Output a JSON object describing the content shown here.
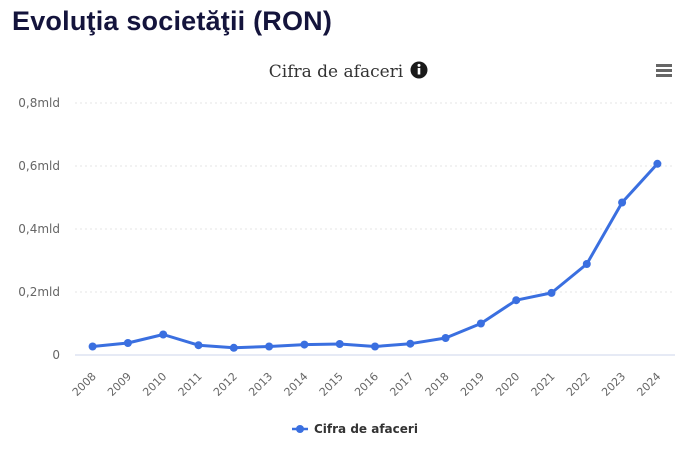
{
  "page": {
    "title": "Evoluţia societăţii (RON)"
  },
  "chart_data": {
    "type": "line",
    "title": "Cifra de afaceri",
    "title_icon": "info-icon",
    "menu_icon": "hamburger-menu-icon",
    "x": [
      "2008",
      "2009",
      "2010",
      "2011",
      "2012",
      "2013",
      "2014",
      "2015",
      "2016",
      "2017",
      "2018",
      "2019",
      "2020",
      "2021",
      "2022",
      "2023",
      "2024"
    ],
    "series": [
      {
        "name": "Cifra de afaceri",
        "color": "#3a6fe0",
        "values": [
          0.027,
          0.038,
          0.065,
          0.031,
          0.023,
          0.027,
          0.033,
          0.035,
          0.027,
          0.036,
          0.054,
          0.1,
          0.174,
          0.197,
          0.289,
          0.484,
          0.607
        ]
      }
    ],
    "y_ticks": [
      {
        "value": 0,
        "label": "0"
      },
      {
        "value": 0.2,
        "label": "0,2mld"
      },
      {
        "value": 0.4,
        "label": "0,4mld"
      },
      {
        "value": 0.6,
        "label": "0,6mld"
      },
      {
        "value": 0.8,
        "label": "0,8mld"
      }
    ],
    "ylim": [
      0,
      0.8
    ],
    "xlabel": "",
    "ylabel": "",
    "grid": true,
    "legend": "bottom-center"
  }
}
